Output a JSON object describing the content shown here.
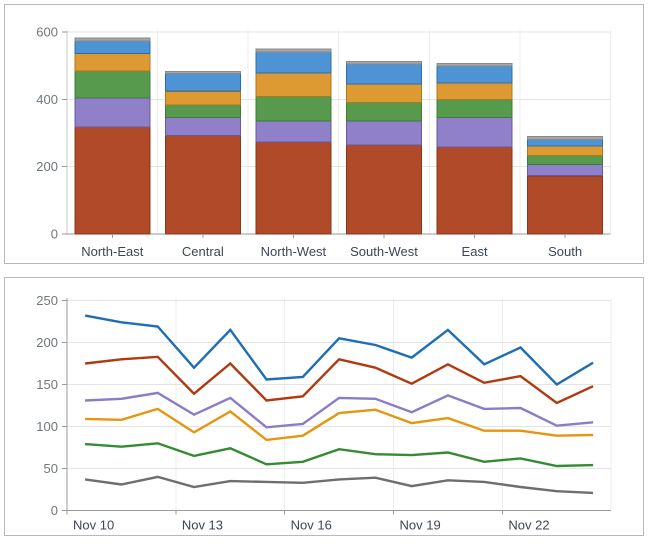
{
  "chart_data": [
    {
      "type": "bar",
      "stacked": true,
      "title": "",
      "xlabel": "",
      "ylabel": "",
      "categories": [
        "North-East",
        "Central",
        "North-West",
        "South-West",
        "East",
        "South"
      ],
      "series": [
        {
          "name": "rust-series",
          "color": "#b04a28",
          "border": "#85381a",
          "values": [
            318,
            293,
            273,
            265,
            258,
            173
          ]
        },
        {
          "name": "purple-series",
          "color": "#8f80c9",
          "border": "#645a9c",
          "values": [
            86,
            53,
            63,
            71,
            88,
            33
          ]
        },
        {
          "name": "green-series",
          "color": "#579a4e",
          "border": "#3c7c35",
          "values": [
            80,
            37,
            73,
            54,
            53,
            27
          ]
        },
        {
          "name": "orange-series",
          "color": "#dd9a33",
          "border": "#b0761d",
          "values": [
            52,
            41,
            70,
            56,
            50,
            28
          ]
        },
        {
          "name": "blue-series",
          "color": "#4e93d4",
          "border": "#2d6cab",
          "values": [
            38,
            52,
            62,
            59,
            50,
            20
          ]
        },
        {
          "name": "gray-series",
          "color": "#a6a6a6",
          "border": "#898989",
          "values": [
            8,
            6,
            8,
            8,
            7,
            8
          ]
        }
      ],
      "y_tick_labels": [
        "0",
        "200",
        "400",
        "600"
      ],
      "y_ticks": [
        0,
        200,
        400,
        600
      ],
      "ylim": [
        0,
        600
      ],
      "grid": true,
      "legend_position": "none"
    },
    {
      "type": "line",
      "title": "",
      "xlabel": "",
      "ylabel": "",
      "x_count": 15,
      "x_tick_labels": [
        "Nov 10",
        "Nov 13",
        "Nov 16",
        "Nov 19",
        "Nov 22"
      ],
      "label_every": 3,
      "series": [
        {
          "name": "blue-line",
          "color": "#1f6db4",
          "values": [
            232,
            224,
            219,
            170,
            215,
            156,
            159,
            205,
            197,
            182,
            215,
            174,
            194,
            150,
            176
          ]
        },
        {
          "name": "red-line",
          "color": "#b03a10",
          "values": [
            175,
            180,
            183,
            139,
            175,
            131,
            136,
            180,
            170,
            151,
            174,
            152,
            160,
            128,
            148
          ]
        },
        {
          "name": "purple-line",
          "color": "#8a7cc8",
          "values": [
            131,
            133,
            140,
            114,
            134,
            99,
            103,
            134,
            133,
            117,
            137,
            121,
            122,
            101,
            105
          ]
        },
        {
          "name": "orange-line",
          "color": "#e6950f",
          "values": [
            109,
            108,
            121,
            93,
            118,
            84,
            89,
            116,
            120,
            104,
            110,
            95,
            95,
            89,
            90
          ]
        },
        {
          "name": "green-line",
          "color": "#348b33",
          "values": [
            79,
            76,
            80,
            65,
            74,
            55,
            58,
            73,
            67,
            66,
            69,
            58,
            62,
            53,
            54
          ]
        },
        {
          "name": "gray-line",
          "color": "#6e6e6e",
          "values": [
            37,
            31,
            40,
            28,
            35,
            34,
            33,
            37,
            39,
            29,
            36,
            34,
            28,
            23,
            21
          ]
        }
      ],
      "y_tick_labels": [
        "0",
        "50",
        "100",
        "150",
        "200",
        "250"
      ],
      "y_ticks": [
        0,
        50,
        100,
        150,
        200,
        250
      ],
      "ylim": [
        0,
        250
      ],
      "grid": true,
      "legend_position": "none"
    }
  ],
  "style": {
    "grid_color": "#e4e4e4",
    "grid_color_vertical": "#ededed",
    "axis_color": "#9a9a9a",
    "y_label_color": "#6f767c",
    "x_label_color": "#3d4654",
    "panel_border_color": "#b9b9b9"
  }
}
